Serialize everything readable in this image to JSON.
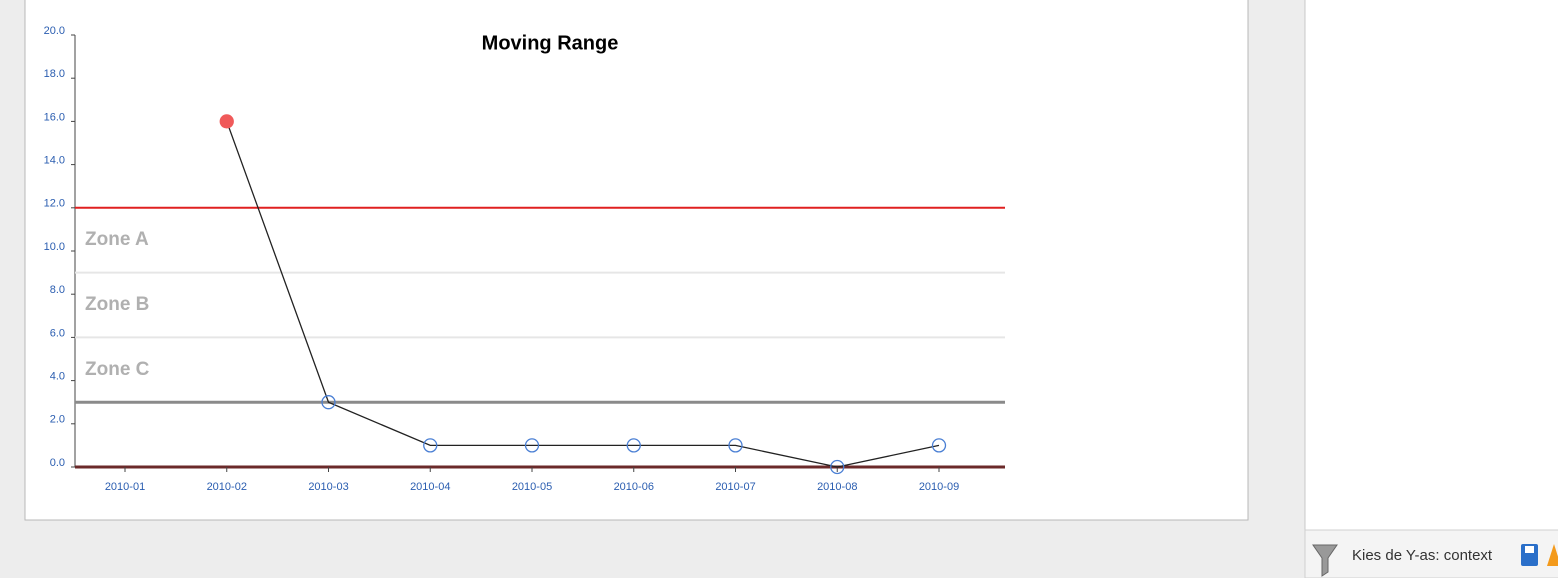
{
  "chart_data": {
    "type": "line",
    "title": "Moving Range",
    "categories": [
      "2010-01",
      "2010-02",
      "2010-03",
      "2010-04",
      "2010-05",
      "2010-06",
      "2010-07",
      "2010-08",
      "2010-09"
    ],
    "values": [
      null,
      16.0,
      3.0,
      1.0,
      1.0,
      1.0,
      1.0,
      0.0,
      1.0
    ],
    "color": "#222222",
    "marker_color": "#4a7fd4",
    "alert_color": "#f05a5a",
    "ylim": [
      0,
      20
    ],
    "yticks": [
      {
        "value": 0,
        "label": "0.0"
      },
      {
        "value": 2,
        "label": "2.0"
      },
      {
        "value": 4,
        "label": "4.0"
      },
      {
        "value": 6,
        "label": "6.0"
      },
      {
        "value": 8,
        "label": "8.0"
      },
      {
        "value": 10,
        "label": "10.0"
      },
      {
        "value": 12,
        "label": "12.0"
      },
      {
        "value": 14,
        "label": "14.0"
      },
      {
        "value": 16,
        "label": "16.0"
      },
      {
        "value": 18,
        "label": "18.0"
      },
      {
        "value": 20,
        "label": "20.0"
      }
    ],
    "ucl": 12,
    "ucl_color": "#e02020",
    "center_line": 3,
    "center_color": "#8a8a8a",
    "zone_boundaries": [
      9,
      6
    ],
    "zone_color": "#e6e6e6",
    "zone_labels": [
      "Zone A",
      "Zone B",
      "Zone C"
    ]
  },
  "sidebar": {
    "label": "Kies de Y-as: context"
  }
}
